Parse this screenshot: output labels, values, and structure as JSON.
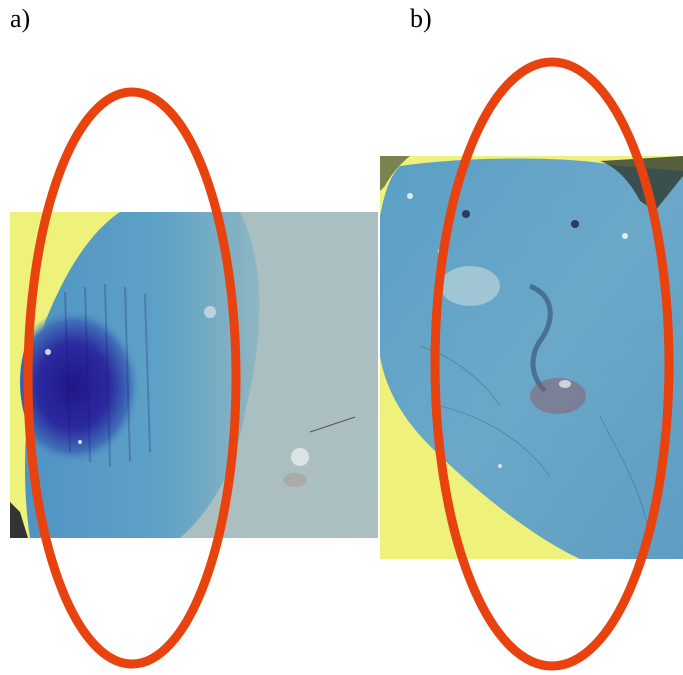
{
  "panels": [
    {
      "label": "a)"
    },
    {
      "label": "b)"
    }
  ],
  "colors": {
    "annotation_ellipse": "#e8420f",
    "tissue_blue": "#5d9cc0",
    "dye_dark_blue": "#241d8c",
    "background_yellow": "#eef27a",
    "background_grey": "#aab3b0"
  },
  "icons": {
    "panel_a_marker": "highlight-ellipse",
    "panel_b_marker": "highlight-ellipse"
  }
}
